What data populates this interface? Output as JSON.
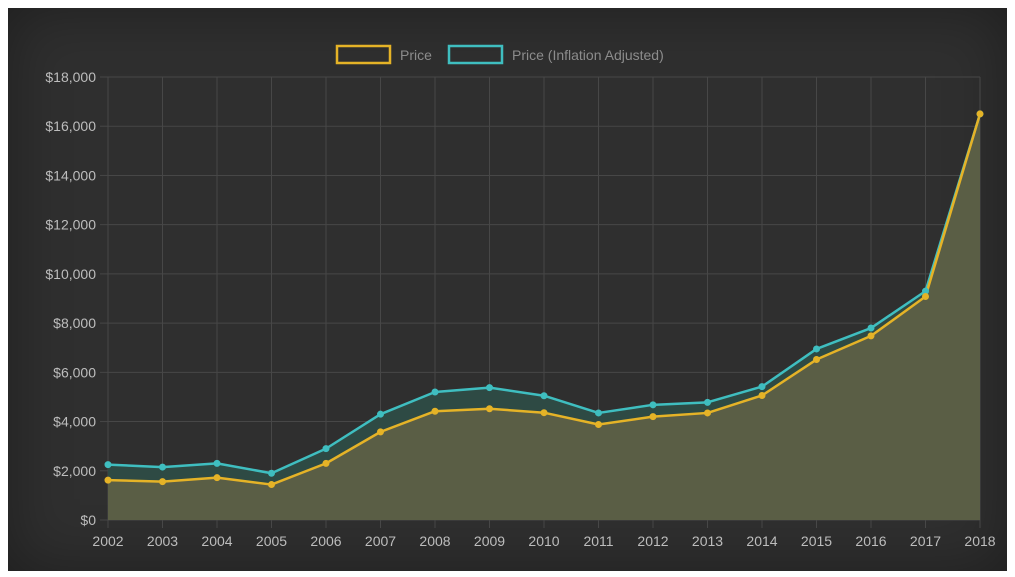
{
  "chart_data": {
    "type": "area",
    "title": "",
    "xlabel": "",
    "ylabel": "",
    "categories": [
      "2002",
      "2003",
      "2004",
      "2005",
      "2006",
      "2007",
      "2008",
      "2009",
      "2010",
      "2011",
      "2012",
      "2013",
      "2014",
      "2015",
      "2016",
      "2017",
      "2018"
    ],
    "ylim": [
      0,
      18000
    ],
    "y_ticks": [
      0,
      2000,
      4000,
      6000,
      8000,
      10000,
      12000,
      14000,
      16000,
      18000
    ],
    "y_tick_labels": [
      "$0",
      "$2,000",
      "$4,000",
      "$6,000",
      "$8,000",
      "$10,000",
      "$12,000",
      "$14,000",
      "$16,000",
      "$18,000"
    ],
    "grid": true,
    "legend_position": "top",
    "background_color": "#2f2f2f",
    "series": [
      {
        "name": "Price (Inflation Adjusted)",
        "color": "#3fbec0",
        "fill_color": "#2e4a44",
        "values": [
          2250,
          2150,
          2300,
          1900,
          2900,
          4300,
          5200,
          5380,
          5050,
          4350,
          4680,
          4780,
          5420,
          6950,
          7800,
          9300,
          16500
        ]
      },
      {
        "name": "Price",
        "color": "#e5b327",
        "fill_color": "#5a5e45",
        "values": [
          1620,
          1560,
          1720,
          1440,
          2300,
          3580,
          4420,
          4520,
          4360,
          3880,
          4200,
          4350,
          5060,
          6520,
          7480,
          9080,
          16500
        ]
      }
    ]
  }
}
